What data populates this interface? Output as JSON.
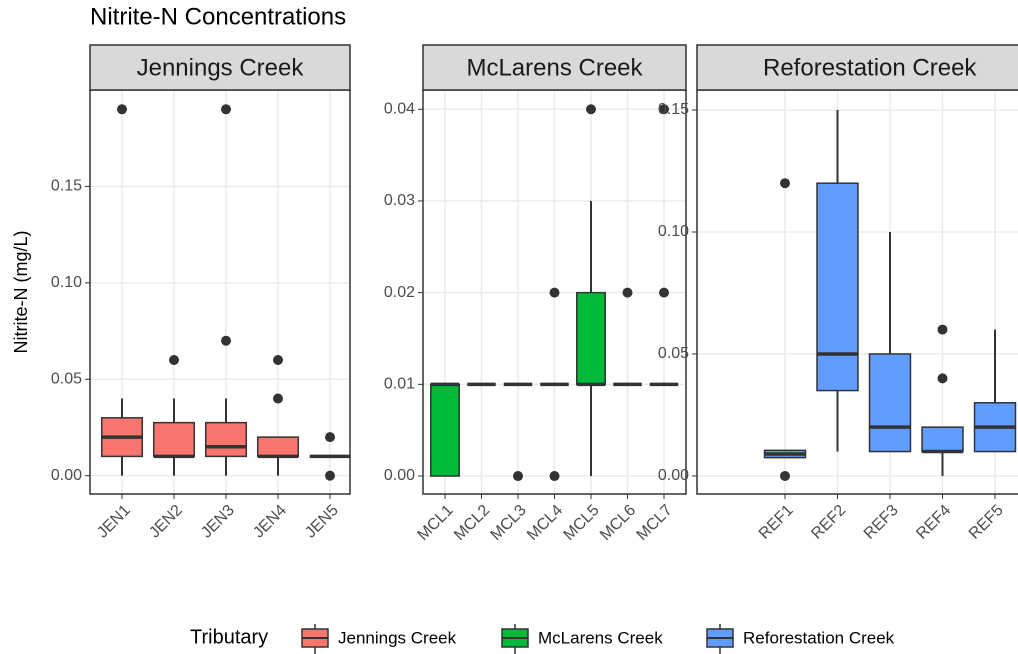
{
  "title": "Nitrite-N Concentrations",
  "y_label": "Nitrite-N (mg/L)",
  "legend_title": "Tributary",
  "chart_data": [
    {
      "type": "box",
      "title": "Jennings Creek",
      "color": "#f8766d",
      "categories": [
        "JEN1",
        "JEN2",
        "JEN3",
        "JEN4",
        "JEN5"
      ],
      "boxes": [
        {
          "min": 0,
          "q1": 0.01,
          "median": 0.02,
          "q3": 0.03,
          "max": 0.04,
          "outliers": [
            0.19
          ]
        },
        {
          "min": 0,
          "q1": 0.01,
          "median": 0.01,
          "q3": 0.0275,
          "max": 0.04,
          "outliers": [
            0.06
          ]
        },
        {
          "min": 0,
          "q1": 0.01,
          "median": 0.015,
          "q3": 0.0275,
          "max": 0.04,
          "outliers": [
            0.19,
            0.07
          ]
        },
        {
          "min": 0,
          "q1": 0.01,
          "median": 0.01,
          "q3": 0.02,
          "max": 0.02,
          "outliers": [
            0.06,
            0.04
          ]
        },
        {
          "min": 0.01,
          "q1": 0.01,
          "median": 0.01,
          "q3": 0.01,
          "max": 0.01,
          "outliers": [
            0.02,
            0
          ]
        }
      ],
      "ylim": [
        -0.0095,
        0.2
      ],
      "yticks": [
        {
          "value": 0,
          "label": "0.00"
        },
        {
          "value": 0.05,
          "label": "0.05"
        },
        {
          "value": 0.1,
          "label": "0.10"
        },
        {
          "value": 0.15,
          "label": "0.15"
        }
      ],
      "grid": true
    },
    {
      "type": "box",
      "title": "McLarens Creek",
      "color": "#00ba38",
      "categories": [
        "MCL1",
        "MCL2",
        "MCL3",
        "MCL4",
        "MCL5",
        "MCL6",
        "MCL7"
      ],
      "boxes": [
        {
          "min": 0,
          "q1": 0,
          "median": 0.01,
          "q3": 0.01,
          "max": 0.01,
          "outliers": []
        },
        {
          "min": 0.01,
          "q1": 0.01,
          "median": 0.01,
          "q3": 0.01,
          "max": 0.01,
          "outliers": []
        },
        {
          "min": 0.01,
          "q1": 0.01,
          "median": 0.01,
          "q3": 0.01,
          "max": 0.01,
          "outliers": [
            0
          ]
        },
        {
          "min": 0.01,
          "q1": 0.01,
          "median": 0.01,
          "q3": 0.01,
          "max": 0.01,
          "outliers": [
            0.02,
            0
          ]
        },
        {
          "min": 0,
          "q1": 0.01,
          "median": 0.01,
          "q3": 0.02,
          "max": 0.03,
          "outliers": [
            0.04
          ]
        },
        {
          "min": 0.01,
          "q1": 0.01,
          "median": 0.01,
          "q3": 0.01,
          "max": 0.01,
          "outliers": [
            0.02
          ]
        },
        {
          "min": 0.01,
          "q1": 0.01,
          "median": 0.01,
          "q3": 0.01,
          "max": 0.01,
          "outliers": [
            0.04,
            0.02
          ]
        }
      ],
      "ylim": [
        -0.00196,
        0.0421
      ],
      "yticks": [
        {
          "value": 0,
          "label": "0.00"
        },
        {
          "value": 0.01,
          "label": "0.01"
        },
        {
          "value": 0.02,
          "label": "0.02"
        },
        {
          "value": 0.03,
          "label": "0.03"
        },
        {
          "value": 0.04,
          "label": "0.04"
        }
      ],
      "grid": true
    },
    {
      "type": "box",
      "title": "Reforestation Creek",
      "color": "#619cff",
      "categories": [
        "REF1",
        "REF2",
        "REF3",
        "REF4",
        "REF5"
      ],
      "boxes": [
        {
          "min": 0.0075,
          "q1": 0.0075,
          "median": 0.009,
          "q3": 0.0105,
          "max": 0.0105,
          "outliers": [
            0.12,
            0
          ]
        },
        {
          "min": 0.01,
          "q1": 0.035,
          "median": 0.05,
          "q3": 0.12,
          "max": 0.15,
          "outliers": []
        },
        {
          "min": 0.01,
          "q1": 0.01,
          "median": 0.02,
          "q3": 0.05,
          "max": 0.1,
          "outliers": []
        },
        {
          "min": 0,
          "q1": 0.01,
          "median": 0.01,
          "q3": 0.02,
          "max": 0.02,
          "outliers": [
            0.06,
            0.04
          ]
        },
        {
          "min": 0.01,
          "q1": 0.01,
          "median": 0.02,
          "q3": 0.03,
          "max": 0.06,
          "outliers": []
        }
      ],
      "ylim": [
        -0.0074,
        0.1582
      ],
      "yticks": [
        {
          "value": 0,
          "label": "0.00"
        },
        {
          "value": 0.05,
          "label": "0.05"
        },
        {
          "value": 0.1,
          "label": "0.10"
        },
        {
          "value": 0.15,
          "label": "0.15"
        }
      ],
      "grid": true
    }
  ]
}
